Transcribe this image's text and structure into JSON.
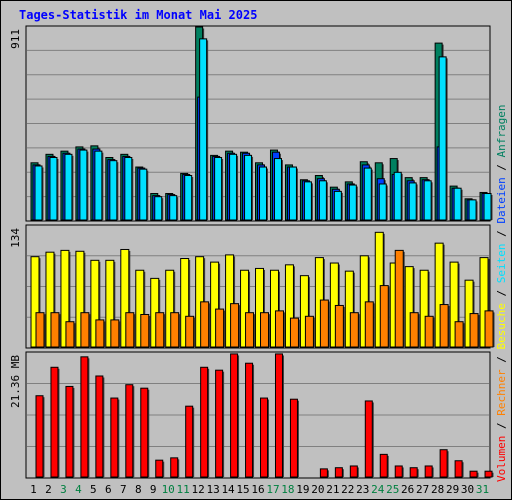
{
  "title": "Tages-Statistik im Monat Mai 2025",
  "colors": {
    "background": "#c0c0c0",
    "title": "#0000ff",
    "anfragen": "#008060",
    "dateien": "#0040ff",
    "seiten": "#00e0ff",
    "besuche": "#ffff00",
    "rechner": "#ff8000",
    "volumen": "#ff0000",
    "weekend": "#008040",
    "weekday": "#000000"
  },
  "right_legend": {
    "parts": [
      {
        "text": "Volumen",
        "color": "#ff0000"
      },
      {
        "text": " / ",
        "color": "#000000"
      },
      {
        "text": "Rechner",
        "color": "#ff8000"
      },
      {
        "text": " / ",
        "color": "#000000"
      },
      {
        "text": "Besuche",
        "color": "#ffff00"
      },
      {
        "text": " / ",
        "color": "#000000"
      },
      {
        "text": "Seiten",
        "color": "#00e0ff"
      },
      {
        "text": " / ",
        "color": "#000000"
      },
      {
        "text": "Dateien",
        "color": "#0040ff"
      },
      {
        "text": " / ",
        "color": "#000000"
      },
      {
        "text": "Anfragen",
        "color": "#008060"
      }
    ]
  },
  "chart_data": [
    {
      "type": "bar",
      "panel": "anfragen-dateien-seiten",
      "y_label": "911",
      "ylim": [
        0,
        911
      ],
      "grid": true,
      "categories": [
        "1",
        "2",
        "3",
        "4",
        "5",
        "6",
        "7",
        "8",
        "9",
        "10",
        "11",
        "12",
        "13",
        "14",
        "15",
        "16",
        "17",
        "18",
        "19",
        "20",
        "21",
        "22",
        "23",
        "24",
        "25",
        "26",
        "27",
        "28",
        "29",
        "30",
        "31"
      ],
      "weekend": [
        false,
        false,
        true,
        true,
        false,
        false,
        false,
        false,
        false,
        true,
        true,
        false,
        false,
        false,
        false,
        false,
        true,
        true,
        false,
        false,
        false,
        false,
        false,
        true,
        true,
        false,
        false,
        false,
        false,
        false,
        true
      ],
      "series": [
        {
          "name": "Anfragen",
          "values": [
            270,
            310,
            325,
            345,
            350,
            295,
            310,
            250,
            125,
            125,
            220,
            911,
            305,
            325,
            320,
            270,
            330,
            260,
            190,
            210,
            155,
            180,
            275,
            270,
            290,
            200,
            200,
            835,
            160,
            100,
            130
          ]
        },
        {
          "name": "Dateien",
          "values": [
            260,
            300,
            315,
            335,
            335,
            285,
            300,
            245,
            115,
            120,
            215,
            580,
            300,
            315,
            315,
            260,
            320,
            250,
            185,
            195,
            145,
            170,
            260,
            195,
            215,
            185,
            190,
            345,
            150,
            95,
            125
          ]
        },
        {
          "name": "Seiten",
          "values": [
            255,
            295,
            310,
            330,
            325,
            280,
            295,
            240,
            110,
            115,
            210,
            855,
            295,
            310,
            305,
            250,
            290,
            250,
            180,
            185,
            135,
            165,
            245,
            170,
            225,
            175,
            185,
            770,
            150,
            95,
            125
          ]
        }
      ]
    },
    {
      "type": "bar",
      "panel": "besuche-rechner",
      "y_label": "134",
      "ylim": [
        0,
        134
      ],
      "grid": true,
      "categories": [
        "1",
        "2",
        "3",
        "4",
        "5",
        "6",
        "7",
        "8",
        "9",
        "10",
        "11",
        "12",
        "13",
        "14",
        "15",
        "16",
        "17",
        "18",
        "19",
        "20",
        "21",
        "22",
        "23",
        "24",
        "25",
        "26",
        "27",
        "28",
        "29",
        "30",
        "31"
      ],
      "series": [
        {
          "name": "Besuche",
          "values": [
            100,
            105,
            107,
            106,
            96,
            96,
            108,
            85,
            76,
            85,
            98,
            100,
            94,
            102,
            85,
            87,
            85,
            91,
            79,
            99,
            93,
            84,
            101,
            127,
            93,
            89,
            85,
            115,
            94,
            74,
            99
          ]
        },
        {
          "name": "Rechner",
          "values": [
            38,
            38,
            28,
            38,
            30,
            30,
            38,
            36,
            38,
            38,
            34,
            50,
            42,
            48,
            38,
            38,
            40,
            32,
            34,
            52,
            46,
            38,
            50,
            68,
            107,
            38,
            34,
            47,
            28,
            37,
            40
          ]
        }
      ]
    },
    {
      "type": "bar",
      "panel": "volumen",
      "y_label": "21.36 MB",
      "ylim": [
        0,
        21.36
      ],
      "grid": true,
      "categories": [
        "1",
        "2",
        "3",
        "4",
        "5",
        "6",
        "7",
        "8",
        "9",
        "10",
        "11",
        "12",
        "13",
        "14",
        "15",
        "16",
        "17",
        "18",
        "19",
        "20",
        "21",
        "22",
        "23",
        "24",
        "25",
        "26",
        "27",
        "28",
        "29",
        "30",
        "31"
      ],
      "series": [
        {
          "name": "Volumen",
          "values": [
            14.0,
            18.9,
            15.6,
            20.7,
            17.4,
            13.6,
            15.9,
            15.3,
            2.9,
            3.3,
            12.2,
            18.9,
            18.4,
            21.2,
            19.6,
            13.6,
            21.2,
            13.4,
            0,
            1.4,
            1.6,
            1.9,
            13.1,
            3.9,
            1.9,
            1.6,
            1.9,
            4.7,
            2.8,
            1.0,
            1.0
          ]
        }
      ]
    }
  ]
}
